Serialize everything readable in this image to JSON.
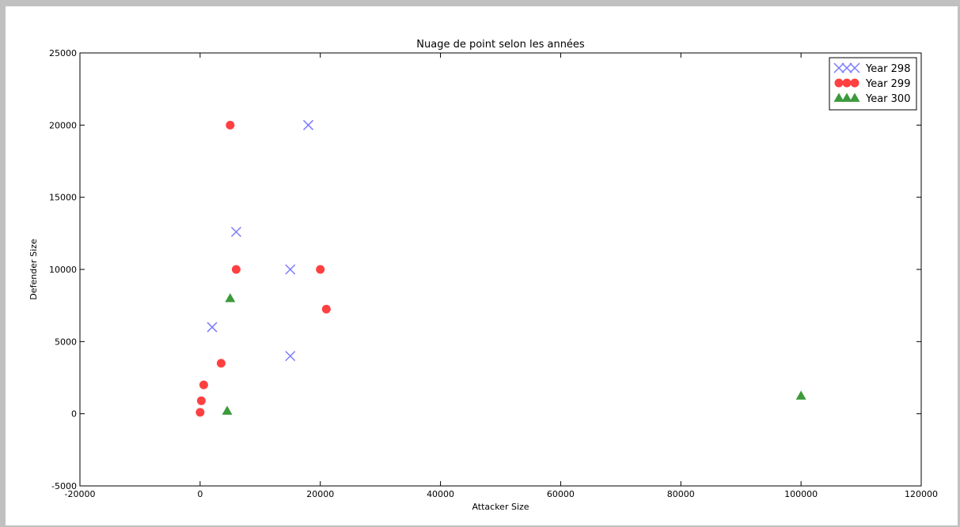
{
  "chart_data": {
    "type": "scatter",
    "title": "Nuage de point selon les années",
    "xlabel": "Attacker Size",
    "ylabel": "Defender Size",
    "xlim": [
      -20000,
      120000
    ],
    "ylim": [
      -5000,
      25000
    ],
    "xticks": [
      -20000,
      0,
      20000,
      40000,
      60000,
      80000,
      100000,
      120000
    ],
    "yticks": [
      -5000,
      0,
      5000,
      10000,
      15000,
      20000,
      25000
    ],
    "grid": false,
    "legend_position": "top-right",
    "series": [
      {
        "name": "Year 298",
        "marker": "x",
        "color": "#7b7bff",
        "points": [
          [
            18000,
            20000
          ],
          [
            6000,
            12600
          ],
          [
            15000,
            10000
          ],
          [
            2000,
            6000
          ],
          [
            15000,
            4000
          ]
        ]
      },
      {
        "name": "Year 299",
        "marker": "circle",
        "color": "#ff4040",
        "points": [
          [
            5000,
            20000
          ],
          [
            6000,
            10000
          ],
          [
            20000,
            10000
          ],
          [
            21000,
            7250
          ],
          [
            3500,
            3500
          ],
          [
            600,
            2000
          ],
          [
            200,
            900
          ],
          [
            0,
            100
          ]
        ]
      },
      {
        "name": "Year 300",
        "marker": "triangle",
        "color": "#3c9a3c",
        "points": [
          [
            5000,
            8000
          ],
          [
            4500,
            200
          ],
          [
            100000,
            1250
          ]
        ]
      }
    ]
  }
}
